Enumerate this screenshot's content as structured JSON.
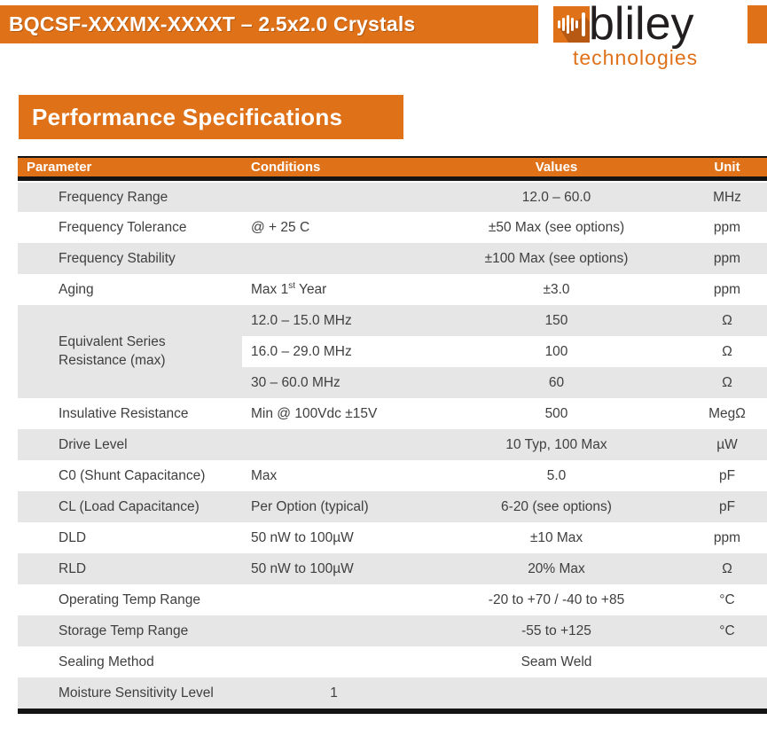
{
  "header": {
    "title": "BQCSF-XXXMX-XXXXT – 2.5x2.0 Crystals",
    "logo": {
      "brand": "bliley",
      "subtitle": "technologies",
      "icon": "soundwave-bars-icon"
    }
  },
  "section": {
    "title": "Performance Specifications"
  },
  "table": {
    "headers": [
      "Parameter",
      "Conditions",
      "Values",
      "Unit"
    ],
    "rows": [
      {
        "param": "Frequency Range",
        "cond": "",
        "value": "12.0 – 60.0",
        "unit": "MHz"
      },
      {
        "param": "Frequency Tolerance",
        "cond": "@ + 25 C",
        "value": "±50 Max (see options)",
        "unit": "ppm"
      },
      {
        "param": "Frequency Stability",
        "cond": "",
        "value": "±100 Max (see options)",
        "unit": "ppm"
      },
      {
        "param": "Aging",
        "cond": "Max 1st Year",
        "cond_parts": {
          "pre": "Max 1",
          "sup": "st",
          "post": " Year"
        },
        "value": "±3.0",
        "unit": "ppm"
      },
      {
        "param": "Equivalent Series Resistance (max)",
        "param_rowspan": 3,
        "cond": "12.0 – 15.0 MHz",
        "value": "150",
        "unit": "Ω"
      },
      {
        "param": null,
        "cond": "16.0 – 29.0 MHz",
        "value": "100",
        "unit": "Ω"
      },
      {
        "param": null,
        "cond": "30 – 60.0 MHz",
        "value": "60",
        "unit": "Ω"
      },
      {
        "param": "Insulative Resistance",
        "cond": "Min @ 100Vdc ±15V",
        "value": "500",
        "unit": "MegΩ"
      },
      {
        "param": "Drive Level",
        "cond": "",
        "value": "10 Typ, 100 Max",
        "unit": "µW"
      },
      {
        "param": "C0 (Shunt Capacitance)",
        "cond": "Max",
        "value": "5.0",
        "unit": "pF"
      },
      {
        "param": "CL (Load Capacitance)",
        "cond": "Per Option (typical)",
        "value": "6-20 (see options)",
        "unit": "pF"
      },
      {
        "param": "DLD",
        "cond": "50 nW to 100µW",
        "value": "±10 Max",
        "unit": "ppm"
      },
      {
        "param": "RLD",
        "cond": "50 nW to 100µW",
        "value": "20% Max",
        "unit": "Ω"
      },
      {
        "param": "Operating Temp Range",
        "cond": "",
        "value": "-20 to +70 / -40 to +85",
        "unit": "°C"
      },
      {
        "param": "Storage Temp Range",
        "cond": "",
        "value": "-55 to +125",
        "unit": "°C"
      },
      {
        "param": "Sealing Method",
        "cond": "",
        "value": "Seam Weld",
        "unit": ""
      },
      {
        "param": "Moisture Sensitivity Level",
        "cond": "1",
        "cond_align": "center",
        "value": "",
        "unit": ""
      }
    ]
  },
  "colors": {
    "accent_orange": "#DF7119",
    "row_shade_gray": "#E6E6E6",
    "border_black": "#141414",
    "body_text": "#3F3F3F",
    "brand_text": "#221E1F"
  }
}
